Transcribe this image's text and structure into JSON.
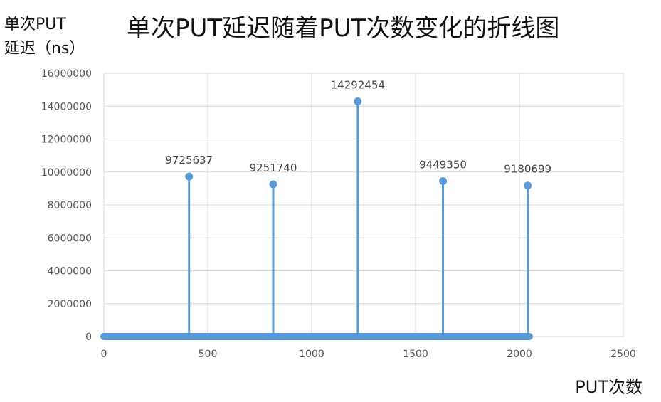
{
  "chart_data": {
    "type": "scatter",
    "title": "单次PUT延迟随着PUT次数变化的折线图",
    "ylabel_line1": "单次PUT",
    "ylabel_line2": "延迟（ns）",
    "xlabel": "PUT次数",
    "xlim": [
      0,
      2500
    ],
    "ylim": [
      0,
      16000000
    ],
    "x_ticks": [
      0,
      500,
      1000,
      1500,
      2000,
      2500
    ],
    "y_ticks": [
      0,
      2000000,
      4000000,
      6000000,
      8000000,
      10000000,
      12000000,
      14000000,
      16000000
    ],
    "grid": true,
    "baseline": {
      "x_start": 0,
      "x_end": 2048,
      "value": 0
    },
    "peaks": [
      {
        "x": 410,
        "y": 9725637,
        "label": "9725637"
      },
      {
        "x": 815,
        "y": 9251740,
        "label": "9251740"
      },
      {
        "x": 1222,
        "y": 14292454,
        "label": "14292454"
      },
      {
        "x": 1632,
        "y": 9449350,
        "label": "9449350"
      },
      {
        "x": 2040,
        "y": 9180699,
        "label": "9180699"
      }
    ],
    "color": "#5b9bd5"
  }
}
